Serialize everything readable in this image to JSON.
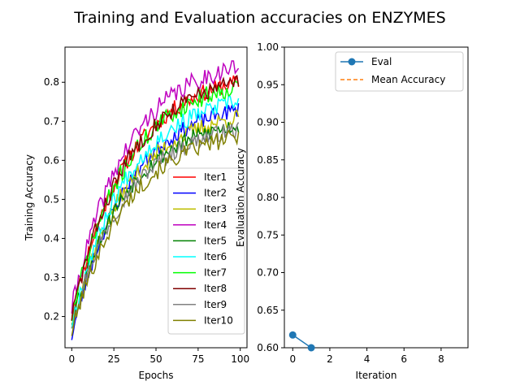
{
  "chart_data": [
    {
      "type": "line",
      "title": "Training and Evaluation accuracies on ENZYMES",
      "xlabel": "Epochs",
      "ylabel": "Training Accuracy",
      "xlim": [
        -4,
        104
      ],
      "ylim": [
        0.12,
        0.89
      ],
      "xticks": [
        0,
        25,
        50,
        75,
        100
      ],
      "yticks": [
        0.2,
        0.3,
        0.4,
        0.5,
        0.6,
        0.7,
        0.8
      ],
      "legend": "lower-right",
      "series": [
        {
          "name": "Iter1",
          "color": "#ff0000",
          "start": 0.2,
          "end": 0.8,
          "seed": 11,
          "noise": 0.022
        },
        {
          "name": "Iter2",
          "color": "#0000ff",
          "start": 0.15,
          "end": 0.73,
          "seed": 23,
          "noise": 0.02
        },
        {
          "name": "Iter3",
          "color": "#bfbf00",
          "start": 0.18,
          "end": 0.71,
          "seed": 37,
          "noise": 0.022
        },
        {
          "name": "Iter4",
          "color": "#bf00bf",
          "start": 0.22,
          "end": 0.84,
          "seed": 41,
          "noise": 0.025
        },
        {
          "name": "Iter5",
          "color": "#008000",
          "start": 0.19,
          "end": 0.69,
          "seed": 53,
          "noise": 0.022
        },
        {
          "name": "Iter6",
          "color": "#00ffff",
          "start": 0.18,
          "end": 0.75,
          "seed": 67,
          "noise": 0.022
        },
        {
          "name": "Iter7",
          "color": "#00ff00",
          "start": 0.2,
          "end": 0.79,
          "seed": 71,
          "noise": 0.024
        },
        {
          "name": "Iter8",
          "color": "#800000",
          "start": 0.2,
          "end": 0.8,
          "seed": 83,
          "noise": 0.022
        },
        {
          "name": "Iter9",
          "color": "#808080",
          "start": 0.18,
          "end": 0.68,
          "seed": 97,
          "noise": 0.022
        },
        {
          "name": "Iter10",
          "color": "#808000",
          "start": 0.16,
          "end": 0.66,
          "seed": 101,
          "noise": 0.022
        }
      ]
    },
    {
      "type": "line",
      "xlabel": "Iteration",
      "ylabel": "Evaluation Accuracy",
      "xlim": [
        -0.45,
        9.45
      ],
      "ylim": [
        0.6,
        1.0
      ],
      "xticks": [
        0,
        2,
        4,
        6,
        8
      ],
      "yticks": [
        0.6,
        0.65,
        0.7,
        0.75,
        0.8,
        0.85,
        0.9,
        0.95,
        1.0
      ],
      "legend": "upper-right",
      "series": [
        {
          "name": "Eval",
          "color": "#1f77b4",
          "marker": "circle",
          "x": [
            0,
            1
          ],
          "y": [
            0.617,
            0.6
          ]
        },
        {
          "name": "Mean Accuracy",
          "color": "#ff7f0e",
          "dashed": true,
          "x": [],
          "y": []
        }
      ]
    }
  ]
}
